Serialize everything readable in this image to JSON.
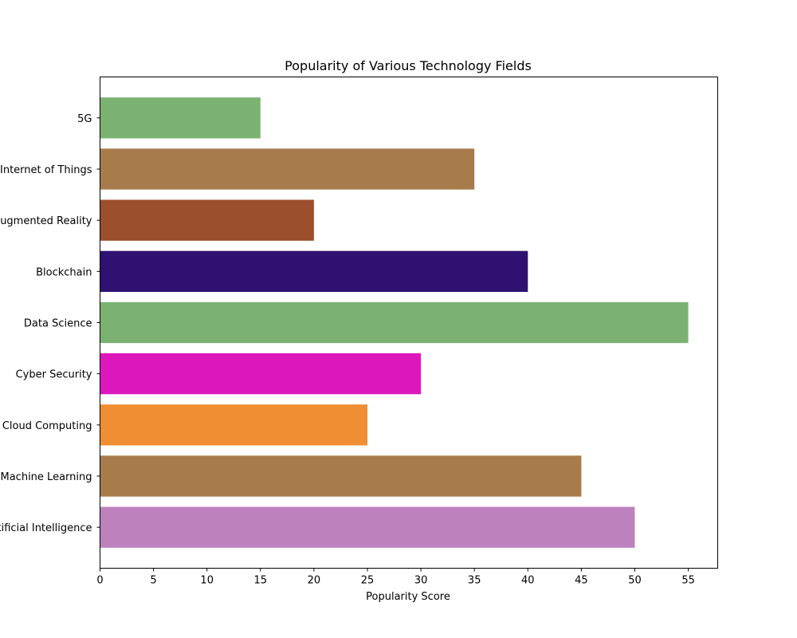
{
  "chart_data": {
    "type": "bar",
    "orientation": "horizontal",
    "title": "Popularity of Various Technology Fields",
    "xlabel": "Popularity Score",
    "ylabel": "",
    "xlim": [
      0,
      57.75
    ],
    "xticks": [
      0,
      5,
      10,
      15,
      20,
      25,
      30,
      35,
      40,
      45,
      50,
      55
    ],
    "grid": false,
    "categories": [
      "Artificial Intelligence",
      "Machine Learning",
      "Cloud Computing",
      "Cyber Security",
      "Data Science",
      "Blockchain",
      "Augmented Reality",
      "Internet of Things",
      "5G"
    ],
    "values": [
      50,
      45,
      25,
      30,
      55,
      40,
      20,
      35,
      15
    ],
    "colors": [
      "#bd82bd",
      "#a87b4d",
      "#f08e33",
      "#dc18bc",
      "#7bb272",
      "#2e1170",
      "#9b4f2d",
      "#a87b4d",
      "#7bb272"
    ]
  }
}
